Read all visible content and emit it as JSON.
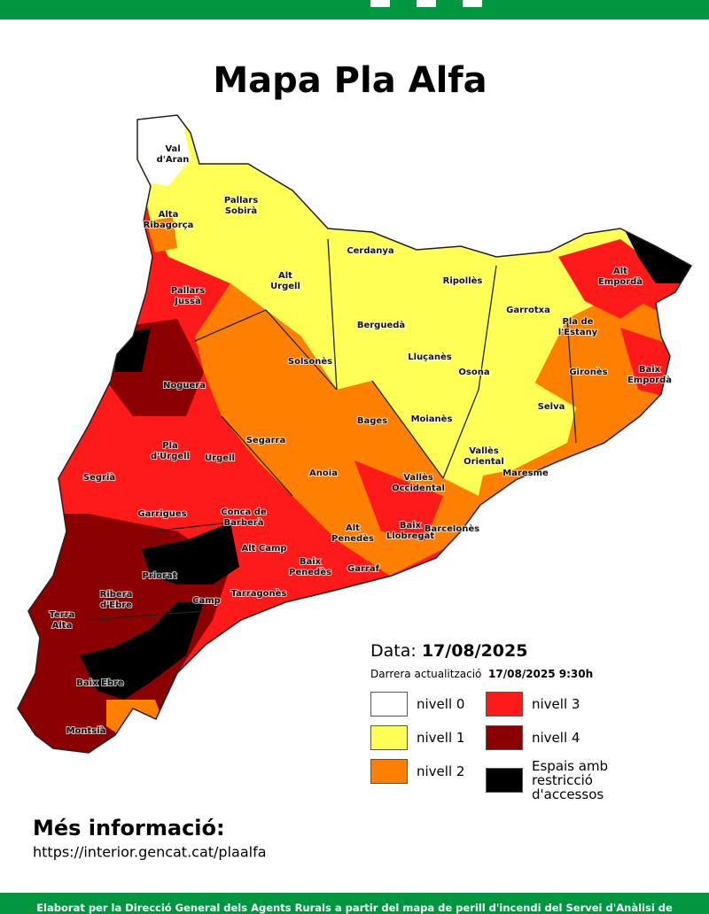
{
  "title": "Mapa Pla Alfa",
  "regions": [
    [
      "Val",
      "d'Aran"
    ],
    [
      "Pallars",
      "Sobirà"
    ],
    [
      "Alta",
      "Ribagorça"
    ],
    [
      "Cerdanya"
    ],
    [
      "Alt",
      "Urgell"
    ],
    [
      "Ripollès"
    ],
    [
      "Alt",
      "Empordà"
    ],
    [
      "Pallars",
      "Jussà"
    ],
    [
      "Garrotxa"
    ],
    [
      "Pla de",
      "l'Estany"
    ],
    [
      "Berguedà"
    ],
    [
      "Solsonès"
    ],
    [
      "Lluçanès"
    ],
    [
      "Noguera"
    ],
    [
      "Osona"
    ],
    [
      "Gironès"
    ],
    [
      "Baix",
      "Empordà"
    ],
    [
      "Moianès"
    ],
    [
      "Bages"
    ],
    [
      "Selva"
    ],
    [
      "Segarra"
    ],
    [
      "Pla",
      "d'Urgell"
    ],
    [
      "Urgell"
    ],
    [
      "Vallès",
      "Oriental"
    ],
    [
      "Maresme"
    ],
    [
      "Segrià"
    ],
    [
      "Anoia"
    ],
    [
      "Vallès",
      "Occidental"
    ],
    [
      "Garrigues"
    ],
    [
      "Conca de",
      "Barberà"
    ],
    [
      "Alt",
      "Penedès"
    ],
    [
      "Baix",
      "Llobregat"
    ],
    [
      "Barcelonès"
    ],
    [
      "Alt Camp"
    ],
    [
      "Baix",
      "Penedès"
    ],
    [
      "Garraf"
    ],
    [
      "Priorat"
    ],
    [
      "Ribera",
      "d'Ebre"
    ],
    [
      "Camp"
    ],
    [
      "Tarragonès"
    ],
    [
      "Terra",
      "Alta"
    ],
    [
      "Baix Ebre"
    ],
    [
      "Montsià"
    ]
  ],
  "date_label": "Data:",
  "date": "17/08/2025",
  "update_label": "Darrera actualització",
  "update": "17/08/2025 9:30h",
  "legend": [
    {
      "label": "nivell 0",
      "color": "#ffffff"
    },
    {
      "label": "nivell 1",
      "color": "#ffff55"
    },
    {
      "label": "nivell 2",
      "color": "#ff8000"
    },
    {
      "label": "nivell 3",
      "color": "#ff1a1a"
    },
    {
      "label": "nivell 4",
      "color": "#8b0000"
    },
    {
      "label": "Espais amb restricció d'accessos",
      "color": "#000000"
    }
  ],
  "more_info": "Més informació:",
  "url": "https://interior.gencat.cat/plaalfa",
  "footer": "Elaborat per la Direcció General dels Agents Rurals a partir del mapa de perill d'incendi del Servei d'Anàlisi de"
}
